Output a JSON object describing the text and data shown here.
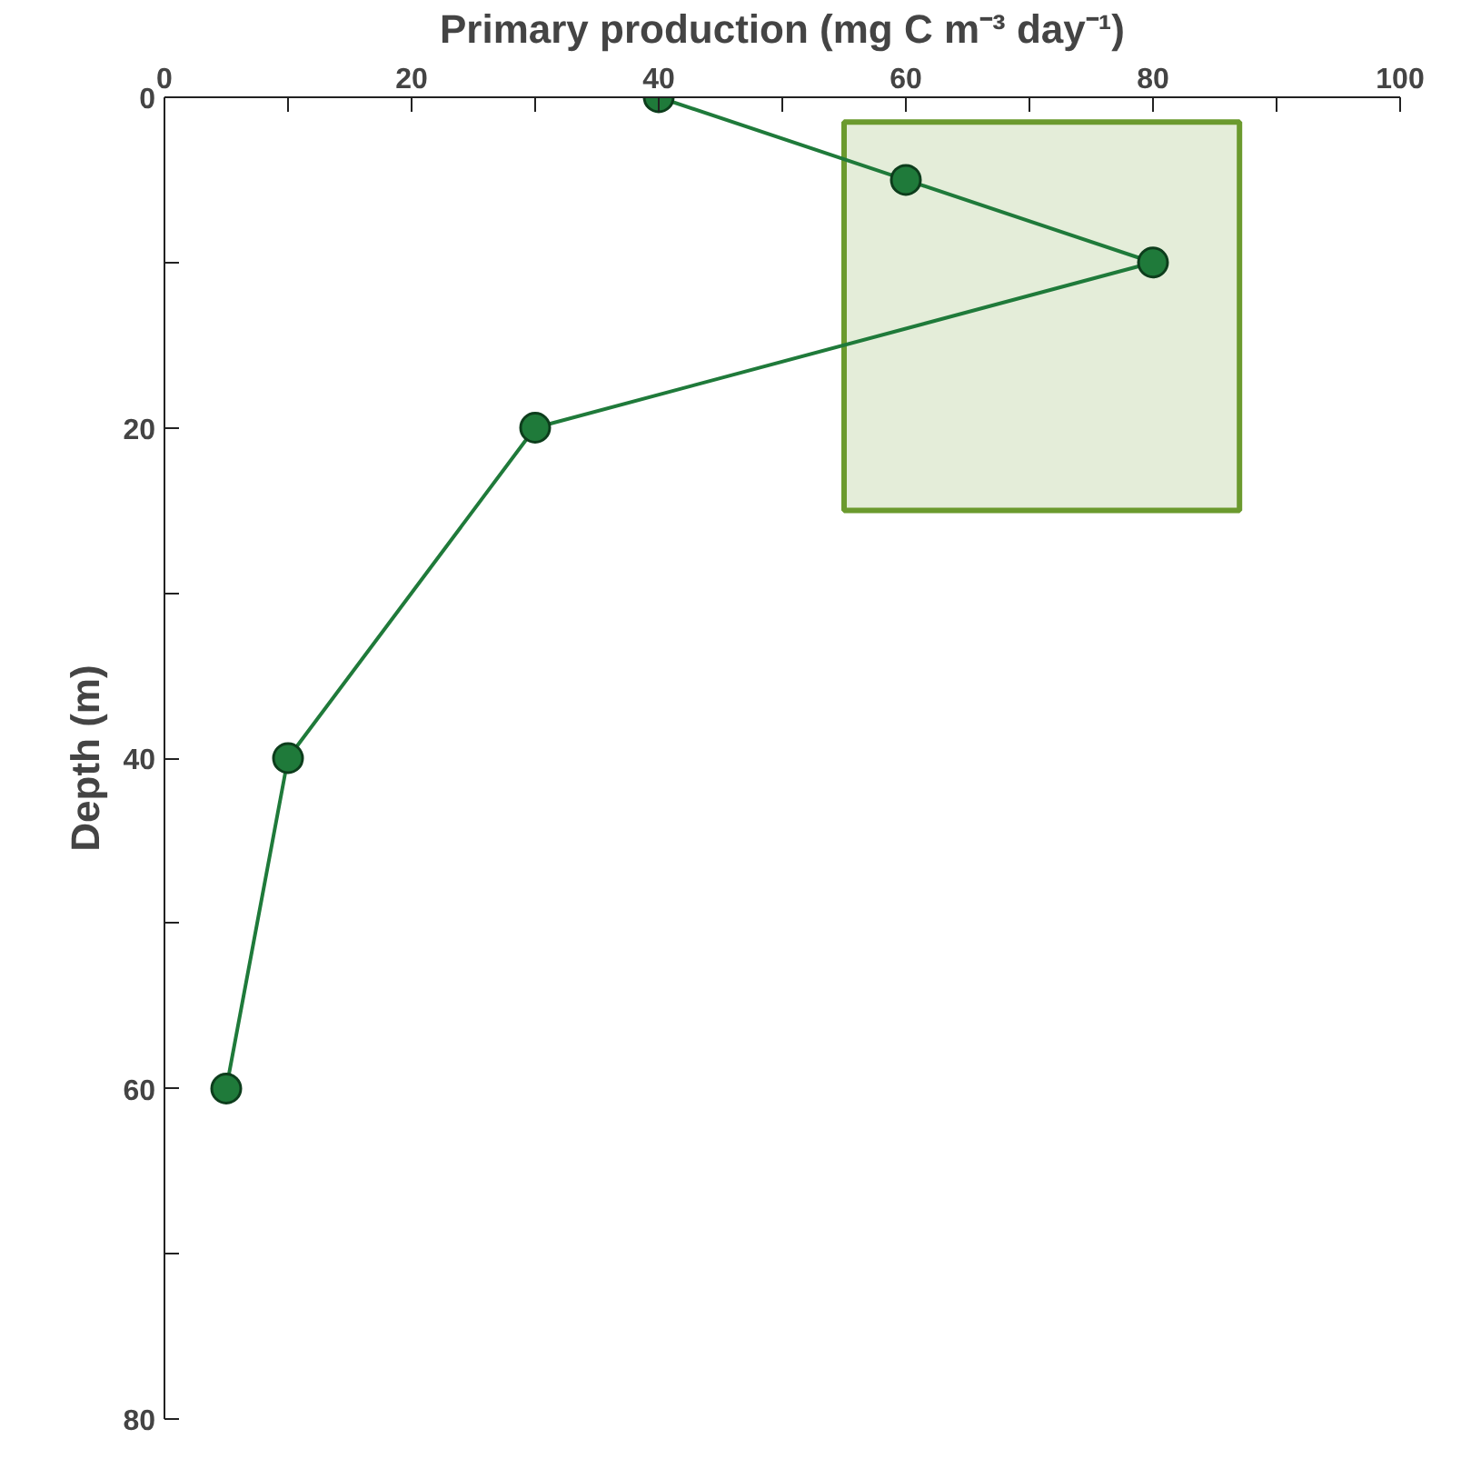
{
  "chart_data": {
    "type": "line",
    "xlabel": "Primary production (mg C m⁻³ day⁻¹)",
    "ylabel": "Depth (m)",
    "x": [
      40,
      60,
      80,
      30,
      10,
      5
    ],
    "series": [
      {
        "type": "area",
        "color": "#6b9a2e",
        "x": [
          55,
          87
        ],
        "values": [
          null,
          null
        ],
        "lower": [
          1.5,
          1.5
        ],
        "upper": [
          25,
          25
        ]
      },
      {
        "color": "#1f7a3a",
        "values": [
          0,
          5,
          10,
          20,
          40,
          60
        ]
      }
    ],
    "marker": "circle",
    "line_style": "solid",
    "grid": false,
    "xlim": [
      0,
      100
    ],
    "ylim": [
      80,
      0
    ],
    "xticks": [
      0,
      {
        "value": 10,
        "label": null
      },
      20,
      {
        "value": 30,
        "label": null
      },
      40,
      {
        "value": 50,
        "label": null
      },
      60,
      {
        "value": 70,
        "label": null
      },
      80,
      {
        "value": 90,
        "label": null
      },
      100
    ],
    "yticks": [
      0,
      {
        "value": 10,
        "label": null
      },
      20,
      {
        "value": 30,
        "label": null
      },
      40,
      {
        "value": 50,
        "label": null
      },
      60,
      {
        "value": 70,
        "label": null
      },
      80
    ]
  }
}
